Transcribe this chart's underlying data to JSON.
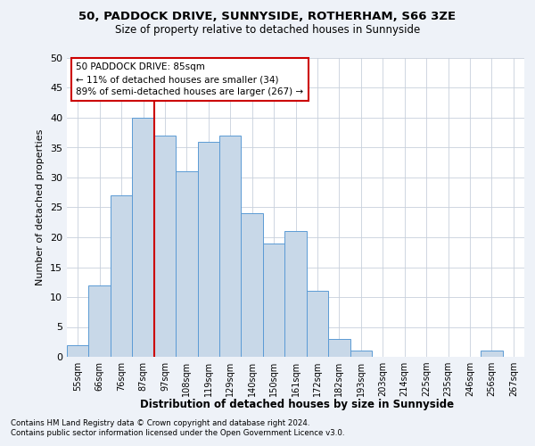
{
  "title1": "50, PADDOCK DRIVE, SUNNYSIDE, ROTHERHAM, S66 3ZE",
  "title2": "Size of property relative to detached houses in Sunnyside",
  "xlabel": "Distribution of detached houses by size in Sunnyside",
  "ylabel": "Number of detached properties",
  "bin_labels": [
    "55sqm",
    "66sqm",
    "76sqm",
    "87sqm",
    "97sqm",
    "108sqm",
    "119sqm",
    "129sqm",
    "140sqm",
    "150sqm",
    "161sqm",
    "172sqm",
    "182sqm",
    "193sqm",
    "203sqm",
    "214sqm",
    "225sqm",
    "235sqm",
    "246sqm",
    "256sqm",
    "267sqm"
  ],
  "values": [
    2,
    12,
    27,
    40,
    37,
    31,
    36,
    37,
    24,
    19,
    21,
    11,
    3,
    1,
    0,
    0,
    0,
    0,
    0,
    1,
    0
  ],
  "bar_color": "#c8d8e8",
  "bar_edge_color": "#5b9bd5",
  "red_line_index": 3,
  "annotation_title": "50 PADDOCK DRIVE: 85sqm",
  "annotation_line1": "← 11% of detached houses are smaller (34)",
  "annotation_line2": "89% of semi-detached houses are larger (267) →",
  "annotation_box_color": "#ffffff",
  "annotation_box_edge": "#cc0000",
  "red_line_color": "#cc0000",
  "ylim": [
    0,
    50
  ],
  "yticks": [
    0,
    5,
    10,
    15,
    20,
    25,
    30,
    35,
    40,
    45,
    50
  ],
  "footnote1": "Contains HM Land Registry data © Crown copyright and database right 2024.",
  "footnote2": "Contains public sector information licensed under the Open Government Licence v3.0.",
  "bg_color": "#eef2f8",
  "plot_bg_color": "#ffffff",
  "grid_color": "#c8d0dc"
}
